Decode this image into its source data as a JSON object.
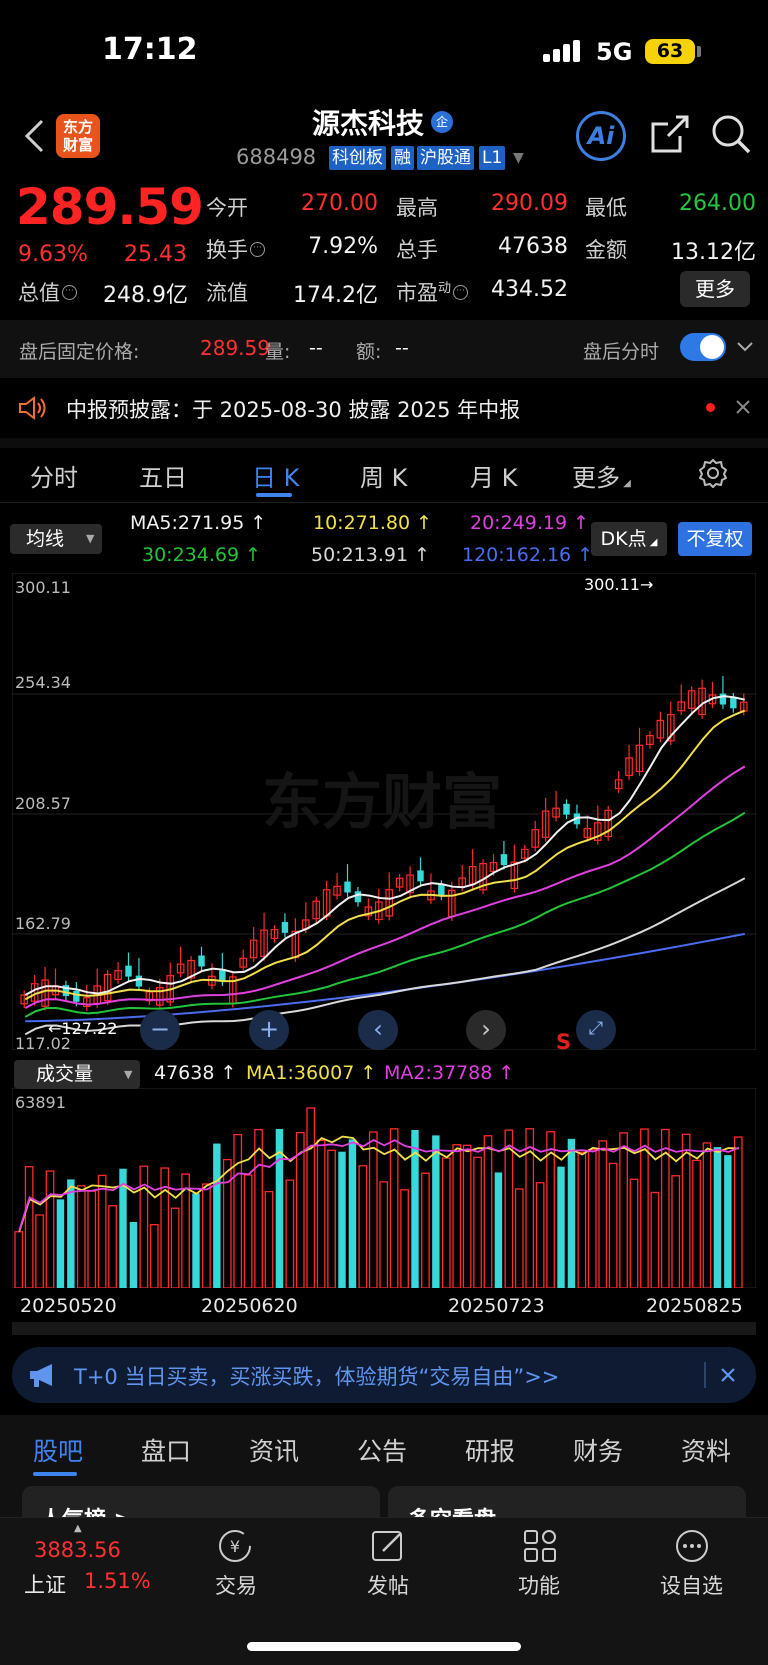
{
  "status": {
    "time": "17:12",
    "network": "5G",
    "battery": "63"
  },
  "header": {
    "logo": "东方财富",
    "name": "源杰科技",
    "badge": "企",
    "code": "688498",
    "tags": [
      "科创板",
      "融",
      "沪股通",
      "L1"
    ],
    "ai": "Ai"
  },
  "quote": {
    "price": "289.59",
    "pct": "9.63%",
    "chg": "25.43",
    "labels": {
      "open": "今开",
      "high": "最高",
      "low": "最低",
      "turnover": "换手",
      "vol": "总手",
      "amount": "金额",
      "mcap": "总值",
      "float": "流值",
      "pe": "市盈",
      "pe_sup": "动"
    },
    "values": {
      "open": "270.00",
      "high": "290.09",
      "low": "264.00",
      "turnover": "7.92%",
      "vol": "47638",
      "amount": "13.12亿",
      "mcap": "248.9亿",
      "float": "174.2亿",
      "pe": "434.52"
    },
    "more": "更多"
  },
  "after_hours": {
    "label": "盘后固定价格:",
    "price": "289.59",
    "vol_label": "量:",
    "vol": "--",
    "amt_label": "额:",
    "amt": "--",
    "fs_label": "盘后分时"
  },
  "notice": {
    "text": "中报预披露：于 2025-08-30 披露 2025 年中报"
  },
  "period_tabs": [
    "分时",
    "五日",
    "日 K",
    "周 K",
    "月 K",
    "更多"
  ],
  "ma": {
    "select": "均线",
    "items": [
      {
        "label": "MA5:271.95 ↑",
        "color": "#f0f0f0"
      },
      {
        "label": "10:271.80 ↑",
        "color": "#f2e04a"
      },
      {
        "label": "20:249.19 ↑",
        "color": "#e040e0"
      },
      {
        "label": "30:234.69 ↑",
        "color": "#23c33a"
      },
      {
        "label": "50:213.91 ↑",
        "color": "#d8d8d8"
      },
      {
        "label": "120:162.16 ↑",
        "color": "#4a6cf0"
      }
    ],
    "dk": "DK点",
    "fq": "不复权"
  },
  "chart_data": {
    "type": "candlestick",
    "y_ticks": [
      "300.11",
      "254.34",
      "208.57",
      "162.79",
      "117.02"
    ],
    "ylim": [
      117.02,
      300.11
    ],
    "max_label": "300.11→",
    "min_label": "←127.22",
    "x_labels": [
      "20250520",
      "20250620",
      "20250723",
      "20250825"
    ],
    "volume": {
      "select": "成交量",
      "value": "47638 ↑",
      "ma1": "MA1:36007 ↑",
      "ma2": "MA2:37788 ↑",
      "max_tick": "63891"
    }
  },
  "promo": {
    "text": "T+0 当日买卖，买涨买跌，体验期货“交易自由”>>"
  },
  "section_tabs": [
    "股吧",
    "盘口",
    "资讯",
    "公告",
    "研报",
    "财务",
    "资料"
  ],
  "peek": {
    "left": "人气榜 >",
    "right": "多空看盘"
  },
  "bottom_nav": {
    "index_value": "3883.56",
    "index_name": "上证",
    "index_pct": "1.51%",
    "items": [
      "交易",
      "发帖",
      "功能",
      "设自选"
    ]
  }
}
